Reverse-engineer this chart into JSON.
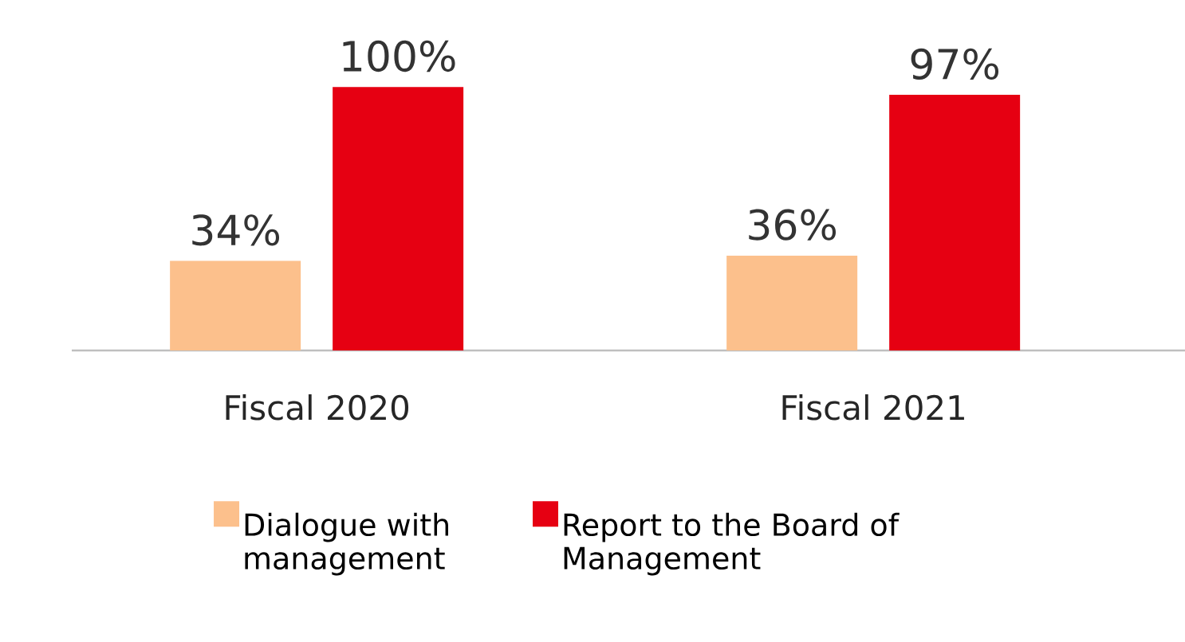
{
  "chart_data": {
    "type": "bar",
    "categories": [
      "Fiscal 2020",
      "Fiscal 2021"
    ],
    "series": [
      {
        "name": "Dialogue with management",
        "color": "#fcc08c",
        "values": [
          34,
          36
        ],
        "value_labels": [
          "34%",
          "36%"
        ]
      },
      {
        "name": "Report to the Board of Management",
        "color": "#e60012",
        "values": [
          100,
          97
        ],
        "value_labels": [
          "100%",
          "97%"
        ]
      }
    ],
    "legend": "bottom"
  }
}
